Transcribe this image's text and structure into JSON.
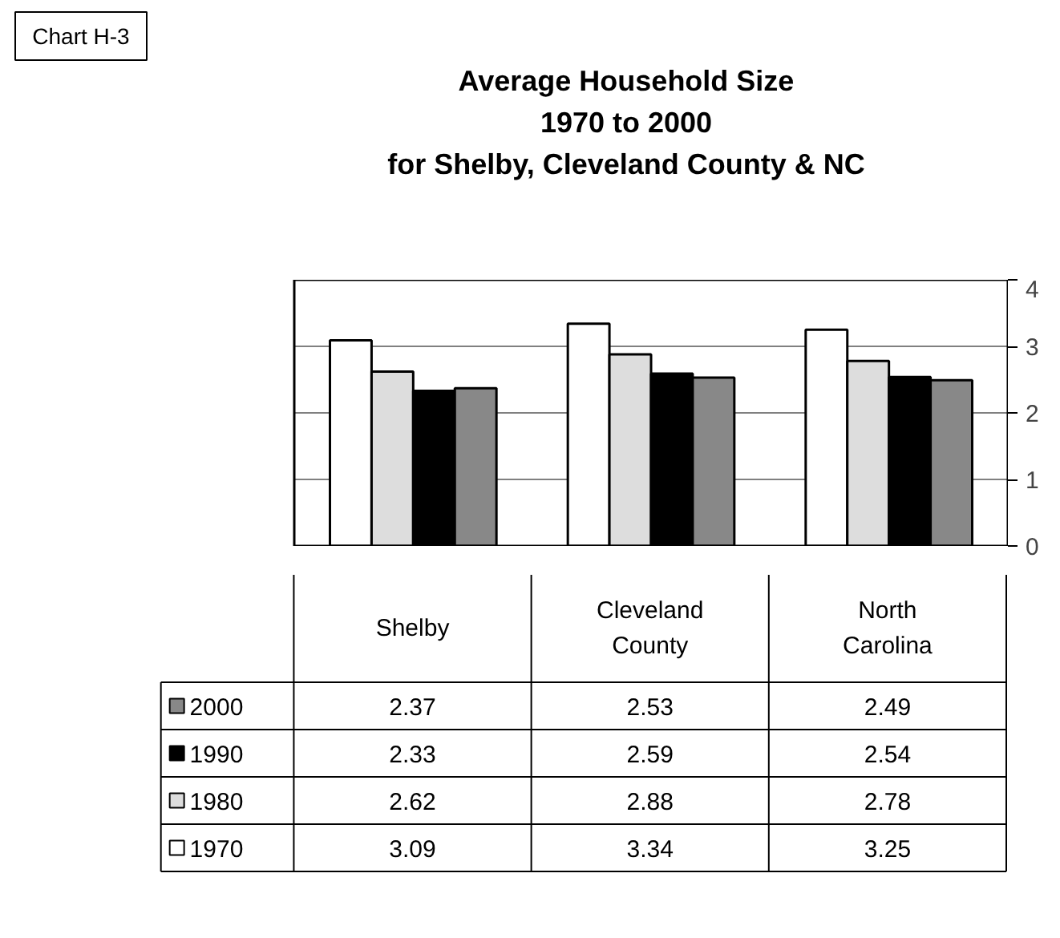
{
  "chart_data": {
    "type": "bar",
    "title": "Average Household Size\n1970 to 2000\nfor Shelby, Cleveland County & NC",
    "categories": [
      "Shelby",
      "Cleveland County",
      "North Carolina"
    ],
    "series": [
      {
        "name": "1970",
        "color": "#ffffff",
        "values": [
          3.09,
          3.34,
          3.25
        ]
      },
      {
        "name": "1980",
        "color": "#dddddd",
        "values": [
          2.62,
          2.88,
          2.78
        ]
      },
      {
        "name": "1990",
        "color": "#000000",
        "values": [
          2.33,
          2.59,
          2.54
        ]
      },
      {
        "name": "2000",
        "color": "#888888",
        "values": [
          2.37,
          2.53,
          2.49
        ]
      }
    ],
    "ylim": [
      0,
      4
    ],
    "yticks": [
      0,
      1,
      2,
      3,
      4
    ],
    "grid": "y",
    "data_labels": true,
    "legend": "bottom left",
    "annotations": [
      "Chart H-3"
    ]
  }
}
